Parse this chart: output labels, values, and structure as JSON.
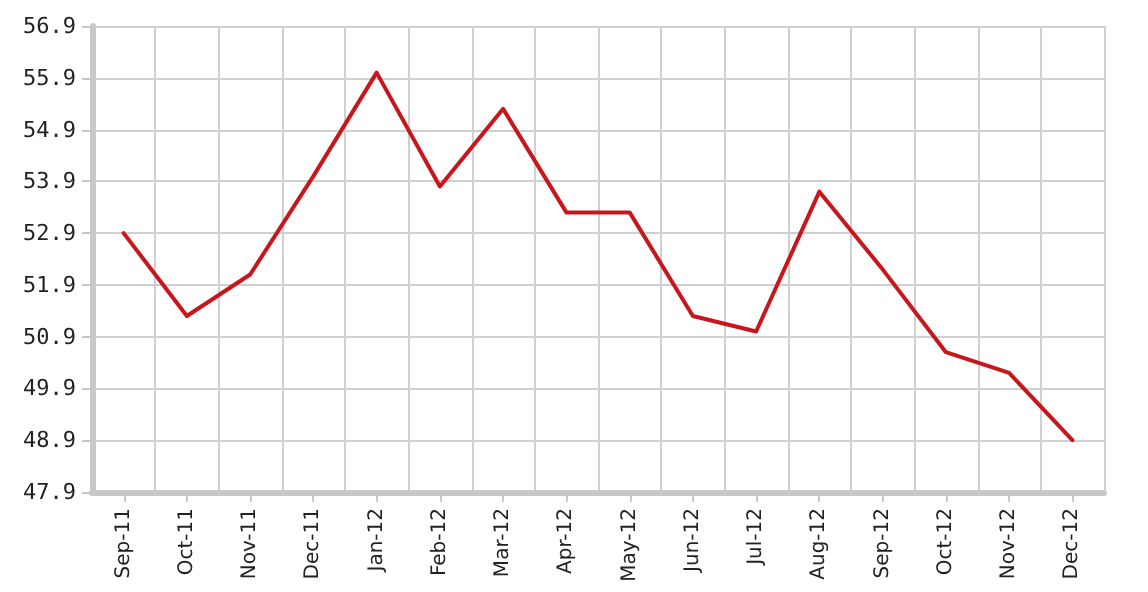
{
  "chart_data": {
    "type": "line",
    "categories": [
      "Sep-11",
      "Oct-11",
      "Nov-11",
      "Dec-11",
      "Jan-12",
      "Feb-12",
      "Mar-12",
      "Apr-12",
      "May-12",
      "Jun-12",
      "Jul-12",
      "Aug-12",
      "Sep-12",
      "Oct-12",
      "Nov-12",
      "Dec-12"
    ],
    "series": [
      {
        "color": "#c8161d",
        "values": [
          52.9,
          51.3,
          52.1,
          54.0,
          56.0,
          53.8,
          55.3,
          53.3,
          53.3,
          51.3,
          51.0,
          53.7,
          52.2,
          50.6,
          50.2,
          48.9
        ]
      }
    ],
    "ylim": [
      47.9,
      56.9
    ],
    "yticks": [
      47.9,
      48.9,
      49.9,
      50.9,
      51.9,
      52.9,
      53.9,
      54.9,
      55.9,
      56.9
    ],
    "grid": true,
    "marker": "none",
    "line_style": "solid"
  }
}
